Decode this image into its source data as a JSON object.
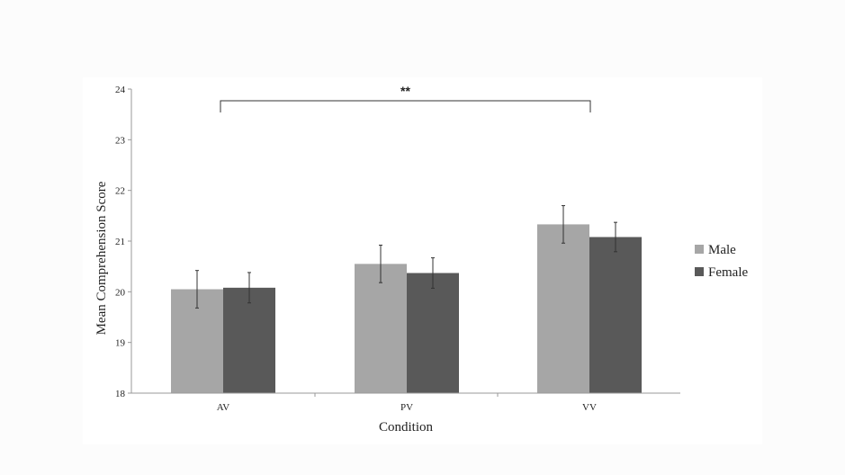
{
  "chart_data": {
    "type": "bar",
    "title": "",
    "xlabel": "Condition",
    "ylabel": "Mean Comprehension Score",
    "categories": [
      "AV",
      "PV",
      "VV"
    ],
    "ylim": [
      18,
      24
    ],
    "yticks": [
      "18",
      "19",
      "20",
      "21",
      "22",
      "23",
      "24"
    ],
    "grid": false,
    "legend_position": "right",
    "series": [
      {
        "name": "Male",
        "color": "#a6a6a6",
        "values": [
          20.05,
          20.55,
          21.33
        ],
        "errors": [
          0.37,
          0.37,
          0.37
        ]
      },
      {
        "name": "Female",
        "color": "#595959",
        "values": [
          20.08,
          20.37,
          21.08
        ],
        "errors": [
          0.3,
          0.3,
          0.29
        ]
      }
    ],
    "annotations": [
      {
        "text": "**",
        "from_category": "AV",
        "to_category": "VV"
      }
    ]
  }
}
